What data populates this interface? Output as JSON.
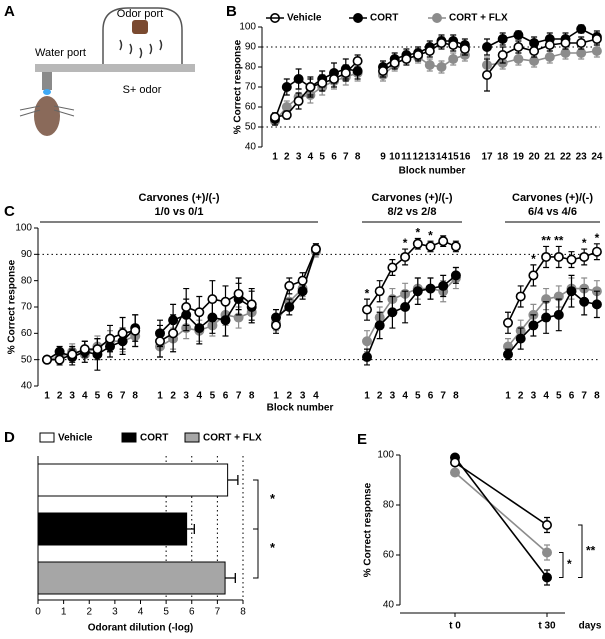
{
  "diagram": {
    "panel": "A",
    "odor_port": "Odor port",
    "water_port": "Water port",
    "odor": "S+ odor"
  },
  "chart_data": [
    {
      "panel": "B",
      "type": "line",
      "ylabel": "% Correct response",
      "xlabel": "Block number",
      "ylim": [
        40,
        100
      ],
      "yticks": [
        40,
        50,
        60,
        70,
        80,
        90,
        100
      ],
      "reference_lines": [
        50,
        90
      ],
      "series": [
        {
          "name": "Vehicle",
          "color": "#000000",
          "fill": "#ffffff"
        },
        {
          "name": "CORT",
          "color": "#000000",
          "fill": "#000000"
        },
        {
          "name": "CORT + FLX",
          "color": "#8c8c8c",
          "fill": "#8c8c8c"
        }
      ],
      "groups": [
        {
          "segments": [
            {
              "categories": [
                "1",
                "2",
                "3",
                "4",
                "5",
                "6",
                "7",
                "8"
              ],
              "series": [
                {
                  "values": [
                    55,
                    56,
                    63,
                    70,
                    72,
                    74,
                    77,
                    83
                  ],
                  "errors": [
                    2,
                    2,
                    4,
                    4,
                    4,
                    4,
                    4,
                    3
                  ]
                },
                {
                  "values": [
                    54,
                    70,
                    74,
                    70,
                    74,
                    77,
                    79,
                    78
                  ],
                  "errors": [
                    3,
                    4,
                    5,
                    5,
                    4,
                    5,
                    5,
                    4
                  ]
                },
                {
                  "values": [
                    53,
                    60,
                    65,
                    66,
                    70,
                    73,
                    75,
                    77
                  ],
                  "errors": [
                    2,
                    3,
                    4,
                    4,
                    4,
                    4,
                    4,
                    4
                  ]
                }
              ]
            },
            {
              "categories": [
                "9",
                "10",
                "11",
                "12",
                "13",
                "14",
                "15",
                "16"
              ],
              "series": [
                {
                  "values": [
                    78,
                    82,
                    84,
                    86,
                    88,
                    92,
                    91,
                    89
                  ],
                  "errors": [
                    3,
                    3,
                    3,
                    3,
                    3,
                    3,
                    3,
                    3
                  ]
                },
                {
                  "values": [
                    80,
                    84,
                    86,
                    87,
                    90,
                    93,
                    93,
                    91
                  ],
                  "errors": [
                    3,
                    3,
                    3,
                    3,
                    3,
                    3,
                    3,
                    3
                  ]
                },
                {
                  "values": [
                    76,
                    81,
                    85,
                    85,
                    81,
                    80,
                    84,
                    86
                  ],
                  "errors": [
                    3,
                    3,
                    3,
                    3,
                    3,
                    3,
                    3,
                    3
                  ]
                }
              ]
            },
            {
              "categories": [
                "17",
                "18",
                "19",
                "20",
                "21",
                "22",
                "23",
                "24"
              ],
              "series": [
                {
                  "values": [
                    76,
                    86,
                    90,
                    88,
                    91,
                    92,
                    92,
                    94
                  ],
                  "errors": [
                    8,
                    4,
                    3,
                    3,
                    3,
                    3,
                    3,
                    3
                  ]
                },
                {
                  "values": [
                    90,
                    94,
                    96,
                    92,
                    94,
                    94,
                    99,
                    95
                  ],
                  "errors": [
                    4,
                    3,
                    2,
                    3,
                    3,
                    3,
                    2,
                    3
                  ]
                },
                {
                  "values": [
                    81,
                    82,
                    84,
                    83,
                    85,
                    87,
                    87,
                    88
                  ],
                  "errors": [
                    4,
                    3,
                    3,
                    3,
                    3,
                    3,
                    3,
                    3
                  ]
                }
              ]
            }
          ]
        }
      ]
    },
    {
      "panel": "C",
      "type": "line",
      "ylabel": "% Correct response",
      "xlabel": "Block number",
      "ylim": [
        40,
        100
      ],
      "yticks": [
        40,
        50,
        60,
        70,
        80,
        90,
        100
      ],
      "reference_lines": [
        50,
        90
      ],
      "series": [
        {
          "color": "#000000",
          "fill": "#ffffff"
        },
        {
          "color": "#000000",
          "fill": "#000000"
        },
        {
          "color": "#8c8c8c",
          "fill": "#8c8c8c"
        }
      ],
      "groups": [
        {
          "title": "Carvones (+)/(-)",
          "subtitle": "1/0 vs 0/1",
          "segments": [
            {
              "categories": [
                "1",
                "2",
                "3",
                "4",
                "5",
                "6",
                "7",
                "8"
              ],
              "series": [
                {
                  "values": [
                    50,
                    50,
                    52,
                    54,
                    54,
                    58,
                    60,
                    61
                  ],
                  "errors": [
                    1,
                    2,
                    3,
                    3,
                    4,
                    5,
                    6,
                    6
                  ]
                },
                {
                  "values": [
                    50,
                    53,
                    51,
                    53,
                    52,
                    55,
                    57,
                    62
                  ],
                  "errors": [
                    1,
                    2,
                    3,
                    4,
                    6,
                    4,
                    5,
                    5
                  ]
                },
                {
                  "values": [
                    50,
                    51,
                    53,
                    52,
                    55,
                    57,
                    57,
                    59
                  ],
                  "errors": [
                    1,
                    2,
                    3,
                    3,
                    4,
                    4,
                    4,
                    4
                  ]
                }
              ]
            },
            {
              "categories": [
                "1",
                "2",
                "3",
                "4",
                "5",
                "6",
                "7",
                "8"
              ],
              "series": [
                {
                  "values": [
                    57,
                    60,
                    70,
                    68,
                    73,
                    72,
                    75,
                    71
                  ],
                  "errors": [
                    6,
                    7,
                    7,
                    6,
                    7,
                    6,
                    6,
                    6
                  ]
                },
                {
                  "values": [
                    60,
                    65,
                    67,
                    62,
                    66,
                    65,
                    73,
                    70
                  ],
                  "errors": [
                    5,
                    6,
                    6,
                    6,
                    6,
                    6,
                    6,
                    6
                  ]
                },
                {
                  "values": [
                    55,
                    58,
                    62,
                    61,
                    63,
                    67,
                    66,
                    68
                  ],
                  "errors": [
                    4,
                    4,
                    4,
                    4,
                    4,
                    4,
                    4,
                    4
                  ]
                }
              ]
            },
            {
              "categories": [
                "1",
                "2",
                "3",
                "4"
              ],
              "series": [
                {
                  "values": [
                    63,
                    78,
                    80,
                    92
                  ],
                  "errors": [
                    3,
                    3,
                    3,
                    2
                  ]
                },
                {
                  "values": [
                    66,
                    70,
                    76,
                    92
                  ],
                  "errors": [
                    3,
                    3,
                    3,
                    2
                  ]
                },
                {
                  "values": [
                    64,
                    72,
                    77,
                    91
                  ],
                  "errors": [
                    3,
                    3,
                    3,
                    2
                  ]
                }
              ]
            }
          ]
        },
        {
          "title": "Carvones (+)/(-)",
          "subtitle": "8/2 vs 2/8",
          "segments": [
            {
              "categories": [
                "1",
                "2",
                "3",
                "4",
                "5",
                "6",
                "7",
                "8"
              ],
              "series": [
                {
                  "values": [
                    69,
                    76,
                    85,
                    89,
                    94,
                    93,
                    95,
                    93
                  ],
                  "errors": [
                    4,
                    4,
                    3,
                    3,
                    2,
                    2,
                    2,
                    2
                  ]
                },
                {
                  "values": [
                    51,
                    63,
                    68,
                    70,
                    76,
                    77,
                    78,
                    82
                  ],
                  "errors": [
                    3,
                    5,
                    6,
                    6,
                    5,
                    4,
                    4,
                    3
                  ]
                },
                {
                  "values": [
                    57,
                    66,
                    73,
                    75,
                    77,
                    77,
                    76,
                    81
                  ],
                  "errors": [
                    4,
                    4,
                    4,
                    4,
                    4,
                    4,
                    4,
                    4
                  ]
                }
              ]
            }
          ],
          "annotations": [
            {
              "x": "1",
              "label": "*"
            },
            {
              "x": "4",
              "label": "*"
            },
            {
              "x": "5",
              "label": "*"
            },
            {
              "x": "6",
              "label": "*"
            }
          ]
        },
        {
          "title": "Carvones (+)/(-)",
          "subtitle": "6/4 vs 4/6",
          "segments": [
            {
              "categories": [
                "1",
                "2",
                "3",
                "4",
                "5",
                "6",
                "7",
                "8"
              ],
              "series": [
                {
                  "values": [
                    64,
                    74,
                    82,
                    89,
                    89,
                    88,
                    89,
                    91
                  ],
                  "errors": [
                    4,
                    4,
                    4,
                    4,
                    4,
                    3,
                    3,
                    3
                  ]
                },
                {
                  "values": [
                    52,
                    58,
                    63,
                    66,
                    67,
                    76,
                    72,
                    71
                  ],
                  "errors": [
                    2,
                    4,
                    4,
                    6,
                    6,
                    6,
                    5,
                    5
                  ]
                },
                {
                  "values": [
                    55,
                    61,
                    67,
                    73,
                    74,
                    77,
                    77,
                    76
                  ],
                  "errors": [
                    3,
                    4,
                    4,
                    4,
                    4,
                    4,
                    4,
                    4
                  ]
                }
              ]
            }
          ],
          "annotations": [
            {
              "x": "3",
              "label": "*"
            },
            {
              "x": "4",
              "label": "**"
            },
            {
              "x": "5",
              "label": "**"
            },
            {
              "x": "7",
              "label": "*"
            },
            {
              "x": "8",
              "label": "*"
            }
          ]
        }
      ]
    },
    {
      "panel": "D",
      "type": "bar",
      "orientation": "horizontal",
      "xlabel": "Odorant dilution (-log)",
      "xlim": [
        0,
        8
      ],
      "xticks": [
        0,
        1,
        2,
        3,
        4,
        5,
        6,
        7,
        8
      ],
      "reference_lines": [
        5,
        6,
        7,
        8
      ],
      "categories": [
        "Vehicle",
        "CORT",
        "CORT + FLX"
      ],
      "values": [
        7.4,
        5.8,
        7.3
      ],
      "errors": [
        0.4,
        0.3,
        0.4
      ],
      "colors": [
        "#ffffff",
        "#000000",
        "#a6a6a6"
      ],
      "comparisons": [
        {
          "bars": [
            0,
            1
          ],
          "label": "*"
        },
        {
          "bars": [
            1,
            2
          ],
          "label": "*"
        }
      ]
    },
    {
      "panel": "E",
      "type": "line",
      "ylabel": "% Correct response",
      "categories": [
        "t 0",
        "t 30"
      ],
      "xlabel": "days",
      "ylim": [
        40,
        100
      ],
      "yticks": [
        40,
        60,
        80,
        100
      ],
      "series": [
        {
          "color": "#000000",
          "fill": "#ffffff",
          "values": [
            97,
            72
          ],
          "errors": [
            1,
            3
          ]
        },
        {
          "color": "#000000",
          "fill": "#000000",
          "values": [
            99,
            51
          ],
          "errors": [
            1,
            3
          ]
        },
        {
          "color": "#8c8c8c",
          "fill": "#8c8c8c",
          "values": [
            93,
            61
          ],
          "errors": [
            1,
            3
          ]
        }
      ],
      "comparisons": [
        {
          "series": [
            0,
            1
          ],
          "label": "**"
        },
        {
          "series": [
            2,
            1
          ],
          "label": "*"
        }
      ]
    }
  ]
}
